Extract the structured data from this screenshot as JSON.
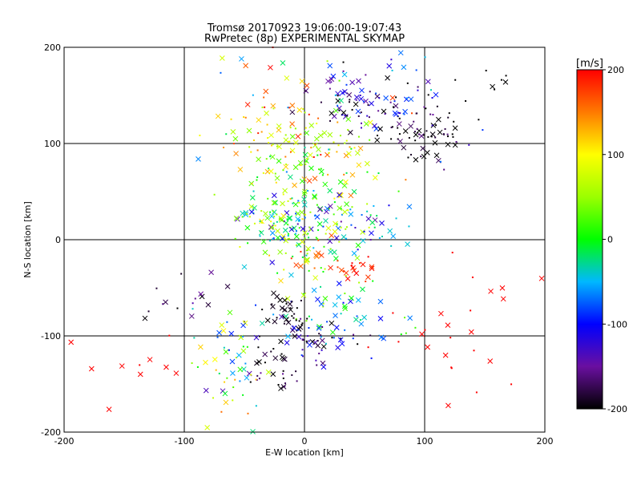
{
  "chart_data": [
    {
      "type": "scatter",
      "title": "Tromsø 20170923 19:06:00-19:07:43",
      "subtitle": "RwPretec (8p) EXPERIMENTAL SKYMAP",
      "xlabel": "E-W location [km]",
      "ylabel": "N-S location [km]",
      "xlim": [
        -200,
        200
      ],
      "ylim": [
        -200,
        200
      ],
      "xticks": [
        "-200",
        "-100",
        "0",
        "100",
        "200"
      ],
      "yticks": [
        "-200",
        "-100",
        "0",
        "100",
        "200"
      ],
      "grid": true,
      "color_variable": "velocity [m/s]",
      "marker_note": "dots and x markers colored by velocity",
      "clusters": [
        {
          "x": 50,
          "y": 140,
          "sx": 20,
          "sy": 15,
          "n": 60,
          "vmean": -150,
          "vspread": 80
        },
        {
          "x": 95,
          "y": 110,
          "sx": 15,
          "sy": 15,
          "n": 60,
          "vmean": -190,
          "vspread": 30
        },
        {
          "x": 70,
          "y": 150,
          "sx": 40,
          "sy": 30,
          "n": 50,
          "vmean": -120,
          "vspread": 90
        },
        {
          "x": 0,
          "y": 110,
          "sx": 25,
          "sy": 15,
          "n": 60,
          "vmean": 110,
          "vspread": 90
        },
        {
          "x": -20,
          "y": 80,
          "sx": 25,
          "sy": 25,
          "n": 55,
          "vmean": 60,
          "vspread": 90
        },
        {
          "x": 20,
          "y": 60,
          "sx": 30,
          "sy": 30,
          "n": 50,
          "vmean": 80,
          "vspread": 100
        },
        {
          "x": 0,
          "y": 20,
          "sx": 30,
          "sy": 20,
          "n": 80,
          "vmean": -40,
          "vspread": 110
        },
        {
          "x": -25,
          "y": 20,
          "sx": 15,
          "sy": 10,
          "n": 40,
          "vmean": 30,
          "vspread": 80
        },
        {
          "x": 45,
          "y": 15,
          "sx": 25,
          "sy": 15,
          "n": 40,
          "vmean": -90,
          "vspread": 80
        },
        {
          "x": 0,
          "y": -15,
          "sx": 20,
          "sy": 15,
          "n": 60,
          "vmean": 60,
          "vspread": 120
        },
        {
          "x": 45,
          "y": -30,
          "sx": 10,
          "sy": 6,
          "n": 20,
          "vmean": 190,
          "vspread": 20
        },
        {
          "x": 30,
          "y": -70,
          "sx": 30,
          "sy": 15,
          "n": 50,
          "vmean": -20,
          "vspread": 90
        },
        {
          "x": -15,
          "y": -75,
          "sx": 8,
          "sy": 10,
          "n": 35,
          "vmean": -195,
          "vspread": 10
        },
        {
          "x": -10,
          "y": -105,
          "sx": 20,
          "sy": 12,
          "n": 35,
          "vmean": -160,
          "vspread": 60
        },
        {
          "x": 20,
          "y": -100,
          "sx": 20,
          "sy": 10,
          "n": 30,
          "vmean": -130,
          "vspread": 90
        },
        {
          "x": -25,
          "y": -140,
          "sx": 10,
          "sy": 10,
          "n": 25,
          "vmean": -180,
          "vspread": 40
        },
        {
          "x": -60,
          "y": -110,
          "sx": 15,
          "sy": 20,
          "n": 35,
          "vmean": 20,
          "vspread": 120
        },
        {
          "x": -60,
          "y": -160,
          "sx": 15,
          "sy": 20,
          "n": 20,
          "vmean": 0,
          "vspread": 160
        },
        {
          "x": -100,
          "y": -70,
          "sx": 15,
          "sy": 15,
          "n": 15,
          "vmean": -180,
          "vspread": 40
        },
        {
          "x": 0,
          "y": 150,
          "sx": 40,
          "sy": 30,
          "n": 40,
          "vmean": 50,
          "vspread": 150
        },
        {
          "x": 130,
          "y": -100,
          "sx": 40,
          "sy": 40,
          "n": 25,
          "vmean": 200,
          "vspread": 0
        },
        {
          "x": -160,
          "y": -130,
          "sx": 25,
          "sy": 20,
          "n": 10,
          "vmean": 200,
          "vspread": 0
        },
        {
          "x": 150,
          "y": 150,
          "sx": 15,
          "sy": 30,
          "n": 10,
          "vmean": -200,
          "vspread": 0
        }
      ],
      "colorbar": {
        "label": "[m/s]",
        "range": [
          -200,
          200
        ],
        "ticks": [
          "200",
          "100",
          "0",
          "-100",
          "-200"
        ]
      }
    }
  ]
}
